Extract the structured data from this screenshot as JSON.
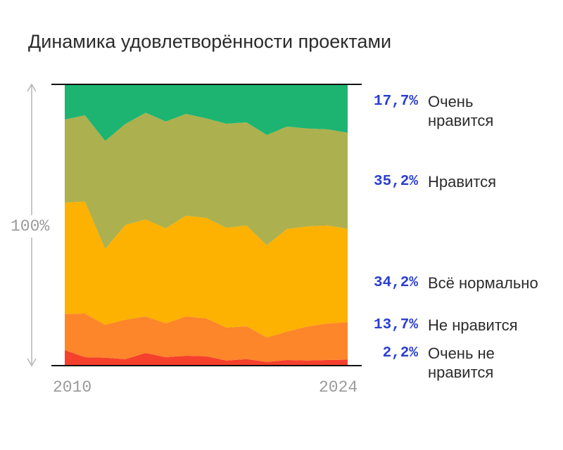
{
  "chart_data": {
    "type": "area",
    "stacked": true,
    "normalized": true,
    "title": "Динамика удовлетворённости проектами",
    "y_label": "100%",
    "x_labels": [
      "2010",
      "2024"
    ],
    "x": [
      2010,
      2011,
      2012,
      2013,
      2014,
      2015,
      2016,
      2017,
      2018,
      2019,
      2020,
      2021,
      2022,
      2023,
      2024
    ],
    "series": [
      {
        "name": "Очень не нравится",
        "share_label": "2,2%",
        "color": "#f5402c",
        "values": [
          5.5,
          3.0,
          2.8,
          2.3,
          4.5,
          3.0,
          3.5,
          3.3,
          1.8,
          2.3,
          1.3,
          2.0,
          1.8,
          2.0,
          2.2
        ]
      },
      {
        "name": "Не нравится",
        "share_label": "13,7%",
        "color": "#fd852a",
        "values": [
          12.9,
          15.5,
          11.7,
          14.0,
          13.0,
          12.0,
          14.0,
          13.5,
          11.7,
          11.7,
          8.7,
          10.1,
          12.1,
          13.0,
          13.7
        ]
      },
      {
        "name": "Всё нормально",
        "share_label": "34,2%",
        "color": "#fdb100",
        "values": [
          39.6,
          39.8,
          27.0,
          33.7,
          34.5,
          33.8,
          35.8,
          35.7,
          35.5,
          35.8,
          32.8,
          36.5,
          35.6,
          34.8,
          34.2
        ]
      },
      {
        "name": "Нравится",
        "share_label": "35,2%",
        "color": "#adb04e",
        "values": [
          29.5,
          30.7,
          38.4,
          35.9,
          37.9,
          38.0,
          36.2,
          35.4,
          37.0,
          36.7,
          39.2,
          36.4,
          34.8,
          34.2,
          35.2
        ]
      },
      {
        "name": "Очень нравится",
        "share_label": "17,7%",
        "color": "#1db471",
        "values": [
          12.5,
          11.0,
          20.1,
          14.1,
          10.1,
          13.2,
          10.5,
          12.1,
          14.0,
          13.5,
          18.0,
          15.0,
          15.7,
          16.0,
          17.7
        ]
      }
    ],
    "legend_placement": "right"
  },
  "legend": [
    {
      "pct": "17,7%",
      "line1": "Очень",
      "line2": "нравится"
    },
    {
      "pct": "35,2%",
      "line1": "Нравится",
      "line2": ""
    },
    {
      "pct": "34,2%",
      "line1": "Всё нормально",
      "line2": ""
    },
    {
      "pct": "13,7%",
      "line1": "Не нравится",
      "line2": ""
    },
    {
      "pct": "2,2%",
      "line1": "Очень не",
      "line2": "нравится"
    }
  ]
}
